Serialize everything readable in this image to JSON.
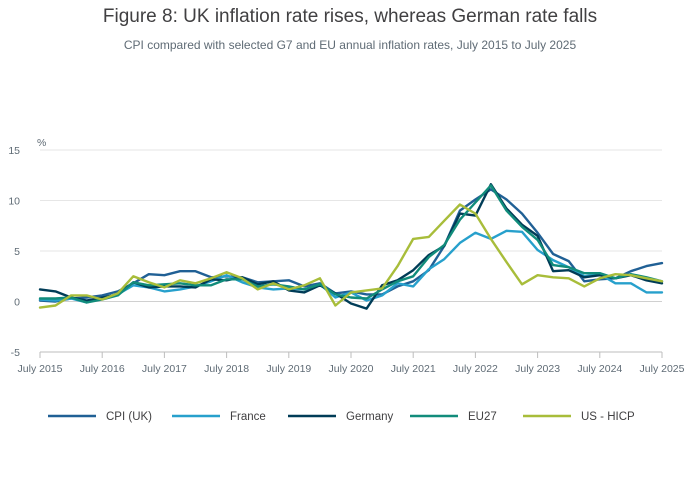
{
  "chart_data": {
    "type": "line",
    "title": "Figure 8: UK inflation rate rises, whereas German rate falls",
    "subtitle": "CPI compared with selected G7 and EU annual inflation rates, July 2015 to July 2025",
    "ylabel": "%",
    "xlabel": "",
    "ylim": [
      -5,
      15
    ],
    "yticks": [
      -5,
      0,
      5,
      10,
      15
    ],
    "xlim": [
      2015.5,
      2025.5
    ],
    "xticks": [
      {
        "x": 2015.5,
        "label": "July 2015"
      },
      {
        "x": 2016.5,
        "label": "July 2016"
      },
      {
        "x": 2017.5,
        "label": "July 2017"
      },
      {
        "x": 2018.5,
        "label": "July 2018"
      },
      {
        "x": 2019.5,
        "label": "July 2019"
      },
      {
        "x": 2020.5,
        "label": "July 2020"
      },
      {
        "x": 2021.5,
        "label": "July 2021"
      },
      {
        "x": 2022.5,
        "label": "July 2022"
      },
      {
        "x": 2023.5,
        "label": "July 2023"
      },
      {
        "x": 2024.5,
        "label": "July 2024"
      },
      {
        "x": 2025.5,
        "label": "July 2025"
      }
    ],
    "grid": true,
    "legend_position": "bottom",
    "series": [
      {
        "name": "CPI (UK)",
        "color": "#206095",
        "x": [
          2015.5,
          2015.75,
          2016.0,
          2016.25,
          2016.5,
          2016.75,
          2017.0,
          2017.25,
          2017.5,
          2017.75,
          2018.0,
          2018.25,
          2018.5,
          2018.75,
          2019.0,
          2019.25,
          2019.5,
          2019.75,
          2020.0,
          2020.25,
          2020.5,
          2020.75,
          2021.0,
          2021.25,
          2021.5,
          2021.75,
          2022.0,
          2022.25,
          2022.5,
          2022.75,
          2023.0,
          2023.25,
          2023.5,
          2023.75,
          2024.0,
          2024.25,
          2024.5,
          2024.75,
          2025.0,
          2025.25,
          2025.5
        ],
        "values": [
          0.1,
          0.0,
          0.3,
          0.4,
          0.6,
          1.0,
          1.8,
          2.7,
          2.6,
          3.0,
          3.0,
          2.4,
          2.5,
          2.4,
          1.9,
          2.0,
          2.1,
          1.5,
          1.8,
          0.8,
          1.0,
          0.7,
          0.7,
          1.5,
          2.0,
          3.1,
          5.5,
          9.0,
          10.1,
          11.1,
          10.1,
          8.7,
          6.8,
          4.7,
          4.0,
          2.0,
          2.2,
          2.3,
          3.0,
          3.5,
          3.8
        ]
      },
      {
        "name": "France",
        "color": "#27a0cc",
        "x": [
          2015.5,
          2015.75,
          2016.0,
          2016.25,
          2016.5,
          2016.75,
          2017.0,
          2017.25,
          2017.5,
          2017.75,
          2018.0,
          2018.25,
          2018.5,
          2018.75,
          2019.0,
          2019.25,
          2019.5,
          2019.75,
          2020.0,
          2020.25,
          2020.5,
          2020.75,
          2021.0,
          2021.25,
          2021.5,
          2021.75,
          2022.0,
          2022.25,
          2022.5,
          2022.75,
          2023.0,
          2023.25,
          2023.5,
          2023.75,
          2024.0,
          2024.25,
          2024.5,
          2024.75,
          2025.0,
          2025.25,
          2025.5
        ],
        "values": [
          0.2,
          0.1,
          0.3,
          -0.1,
          0.4,
          0.7,
          1.6,
          1.4,
          1.0,
          1.2,
          1.5,
          2.0,
          2.6,
          1.9,
          1.4,
          1.2,
          1.3,
          1.2,
          1.7,
          0.4,
          0.9,
          0.1,
          0.6,
          1.8,
          1.5,
          3.2,
          4.2,
          5.8,
          6.8,
          6.2,
          7.0,
          6.9,
          5.1,
          4.1,
          3.4,
          2.5,
          2.7,
          1.8,
          1.8,
          0.9,
          0.9
        ]
      },
      {
        "name": "Germany",
        "color": "#003c57",
        "x": [
          2015.5,
          2015.75,
          2016.0,
          2016.25,
          2016.5,
          2016.75,
          2017.0,
          2017.25,
          2017.5,
          2017.75,
          2018.0,
          2018.25,
          2018.5,
          2018.75,
          2019.0,
          2019.25,
          2019.5,
          2019.75,
          2020.0,
          2020.25,
          2020.5,
          2020.75,
          2021.0,
          2021.25,
          2021.5,
          2021.75,
          2022.0,
          2022.25,
          2022.5,
          2022.75,
          2023.0,
          2023.25,
          2023.5,
          2023.75,
          2024.0,
          2024.25,
          2024.5,
          2024.75,
          2025.0,
          2025.25,
          2025.5
        ],
        "values": [
          1.2,
          1.0,
          0.4,
          0.1,
          0.4,
          0.7,
          1.9,
          1.4,
          1.5,
          1.5,
          1.4,
          2.2,
          2.1,
          2.4,
          1.7,
          2.0,
          1.1,
          0.9,
          1.6,
          0.8,
          -0.2,
          -0.7,
          1.6,
          2.1,
          3.1,
          4.6,
          5.5,
          8.7,
          8.5,
          11.6,
          9.2,
          7.6,
          6.5,
          3.0,
          3.1,
          2.4,
          2.6,
          2.3,
          2.6,
          2.1,
          1.8
        ]
      },
      {
        "name": "EU27",
        "color": "#118c7b",
        "x": [
          2015.5,
          2015.75,
          2016.0,
          2016.25,
          2016.5,
          2016.75,
          2017.0,
          2017.25,
          2017.5,
          2017.75,
          2018.0,
          2018.25,
          2018.5,
          2018.75,
          2019.0,
          2019.25,
          2019.5,
          2019.75,
          2020.0,
          2020.25,
          2020.5,
          2020.75,
          2021.0,
          2021.25,
          2021.5,
          2021.75,
          2022.0,
          2022.25,
          2022.5,
          2022.75,
          2023.0,
          2023.25,
          2023.5,
          2023.75,
          2024.0,
          2024.25,
          2024.5,
          2024.75,
          2025.0,
          2025.25,
          2025.5
        ],
        "values": [
          0.3,
          0.3,
          0.4,
          -0.1,
          0.2,
          0.6,
          1.9,
          1.6,
          1.7,
          1.8,
          1.6,
          1.6,
          2.2,
          2.2,
          1.5,
          1.7,
          1.5,
          1.2,
          1.7,
          0.7,
          0.4,
          0.3,
          1.2,
          2.0,
          2.5,
          4.4,
          5.6,
          8.1,
          9.8,
          11.5,
          9.0,
          7.4,
          6.1,
          3.6,
          3.4,
          2.8,
          2.8,
          2.3,
          2.7,
          2.4,
          2.0
        ]
      },
      {
        "name": "US - HICP",
        "color": "#a8bd3a",
        "x": [
          2015.5,
          2015.75,
          2016.0,
          2016.25,
          2016.5,
          2016.75,
          2017.0,
          2017.25,
          2017.5,
          2017.75,
          2018.0,
          2018.25,
          2018.5,
          2018.75,
          2019.0,
          2019.25,
          2019.5,
          2019.75,
          2020.0,
          2020.25,
          2020.5,
          2020.75,
          2021.0,
          2021.25,
          2021.5,
          2021.75,
          2022.0,
          2022.25,
          2022.5,
          2022.75,
          2023.0,
          2023.25,
          2023.5,
          2023.75,
          2024.0,
          2024.25,
          2024.5,
          2024.75,
          2025.0,
          2025.25,
          2025.5
        ],
        "values": [
          -0.6,
          -0.4,
          0.6,
          0.6,
          0.2,
          0.8,
          2.5,
          1.9,
          1.4,
          2.1,
          1.8,
          2.3,
          2.9,
          2.3,
          1.2,
          1.8,
          1.2,
          1.6,
          2.3,
          -0.4,
          0.9,
          1.1,
          1.3,
          3.5,
          6.2,
          6.4,
          8.0,
          9.6,
          8.7,
          6.2,
          3.9,
          1.7,
          2.6,
          2.4,
          2.3,
          1.5,
          2.3,
          2.7,
          2.6,
          2.3,
          2.0
        ]
      }
    ]
  }
}
